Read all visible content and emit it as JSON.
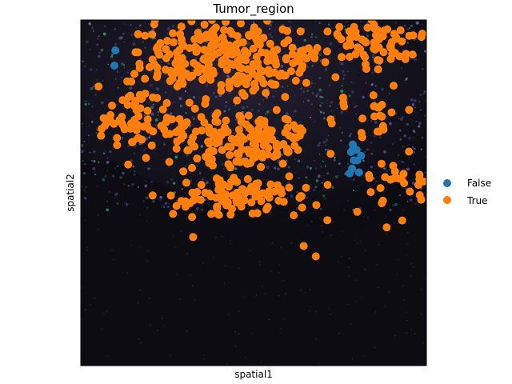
{
  "chart_data": {
    "type": "scatter",
    "title": "Tumor_region",
    "xlabel": "spatial1",
    "ylabel": "spatial2",
    "background": "spatial tissue image (dark, with faint purple and green fluorescence)",
    "legend": {
      "placement": "right",
      "entries": [
        {
          "label": "False",
          "color": "#1f77b4"
        },
        {
          "label": "True",
          "color": "#ff7f0e"
        }
      ]
    },
    "series": [
      {
        "name": "False",
        "color": "#1f77b4",
        "points": [
          [
            0.1,
            0.912
          ],
          [
            0.097,
            0.868
          ],
          [
            0.782,
            0.618
          ],
          [
            0.785,
            0.57
          ],
          [
            0.79,
            0.594
          ],
          [
            0.798,
            0.624
          ],
          [
            0.805,
            0.559
          ],
          [
            0.778,
            0.556
          ],
          [
            0.8,
            0.594
          ],
          [
            0.787,
            0.64
          ],
          [
            0.811,
            0.607
          ]
        ]
      },
      {
        "name": "True",
        "color": "#ff7f0e",
        "clusters": [
          {
            "cx": 0.43,
            "cy": 0.89,
            "rx": 0.22,
            "ry": 0.09,
            "n": 260
          },
          {
            "cx": 0.48,
            "cy": 0.65,
            "rx": 0.18,
            "ry": 0.08,
            "n": 160
          },
          {
            "cx": 0.48,
            "cy": 0.49,
            "rx": 0.2,
            "ry": 0.06,
            "n": 90
          },
          {
            "cx": 0.16,
            "cy": 0.73,
            "rx": 0.12,
            "ry": 0.1,
            "n": 70
          },
          {
            "cx": 0.85,
            "cy": 0.93,
            "rx": 0.14,
            "ry": 0.06,
            "n": 70
          },
          {
            "cx": 0.92,
            "cy": 0.53,
            "rx": 0.09,
            "ry": 0.06,
            "n": 25
          },
          {
            "cx": 0.83,
            "cy": 0.72,
            "rx": 0.1,
            "ry": 0.06,
            "n": 20
          }
        ],
        "points": [
          [
            0.325,
            0.372
          ],
          [
            0.322,
            0.43
          ],
          [
            0.645,
            0.346
          ],
          [
            0.68,
            0.316
          ],
          [
            0.137,
            0.582
          ],
          [
            0.105,
            0.638
          ],
          [
            0.303,
            0.475
          ],
          [
            0.885,
            0.4
          ],
          [
            0.93,
            0.42
          ],
          [
            0.8,
            0.445
          ],
          [
            0.985,
            0.48
          ],
          [
            0.96,
            0.9
          ],
          [
            0.76,
            0.76
          ],
          [
            0.905,
            0.81
          ],
          [
            0.95,
            0.74
          ]
        ]
      }
    ]
  }
}
